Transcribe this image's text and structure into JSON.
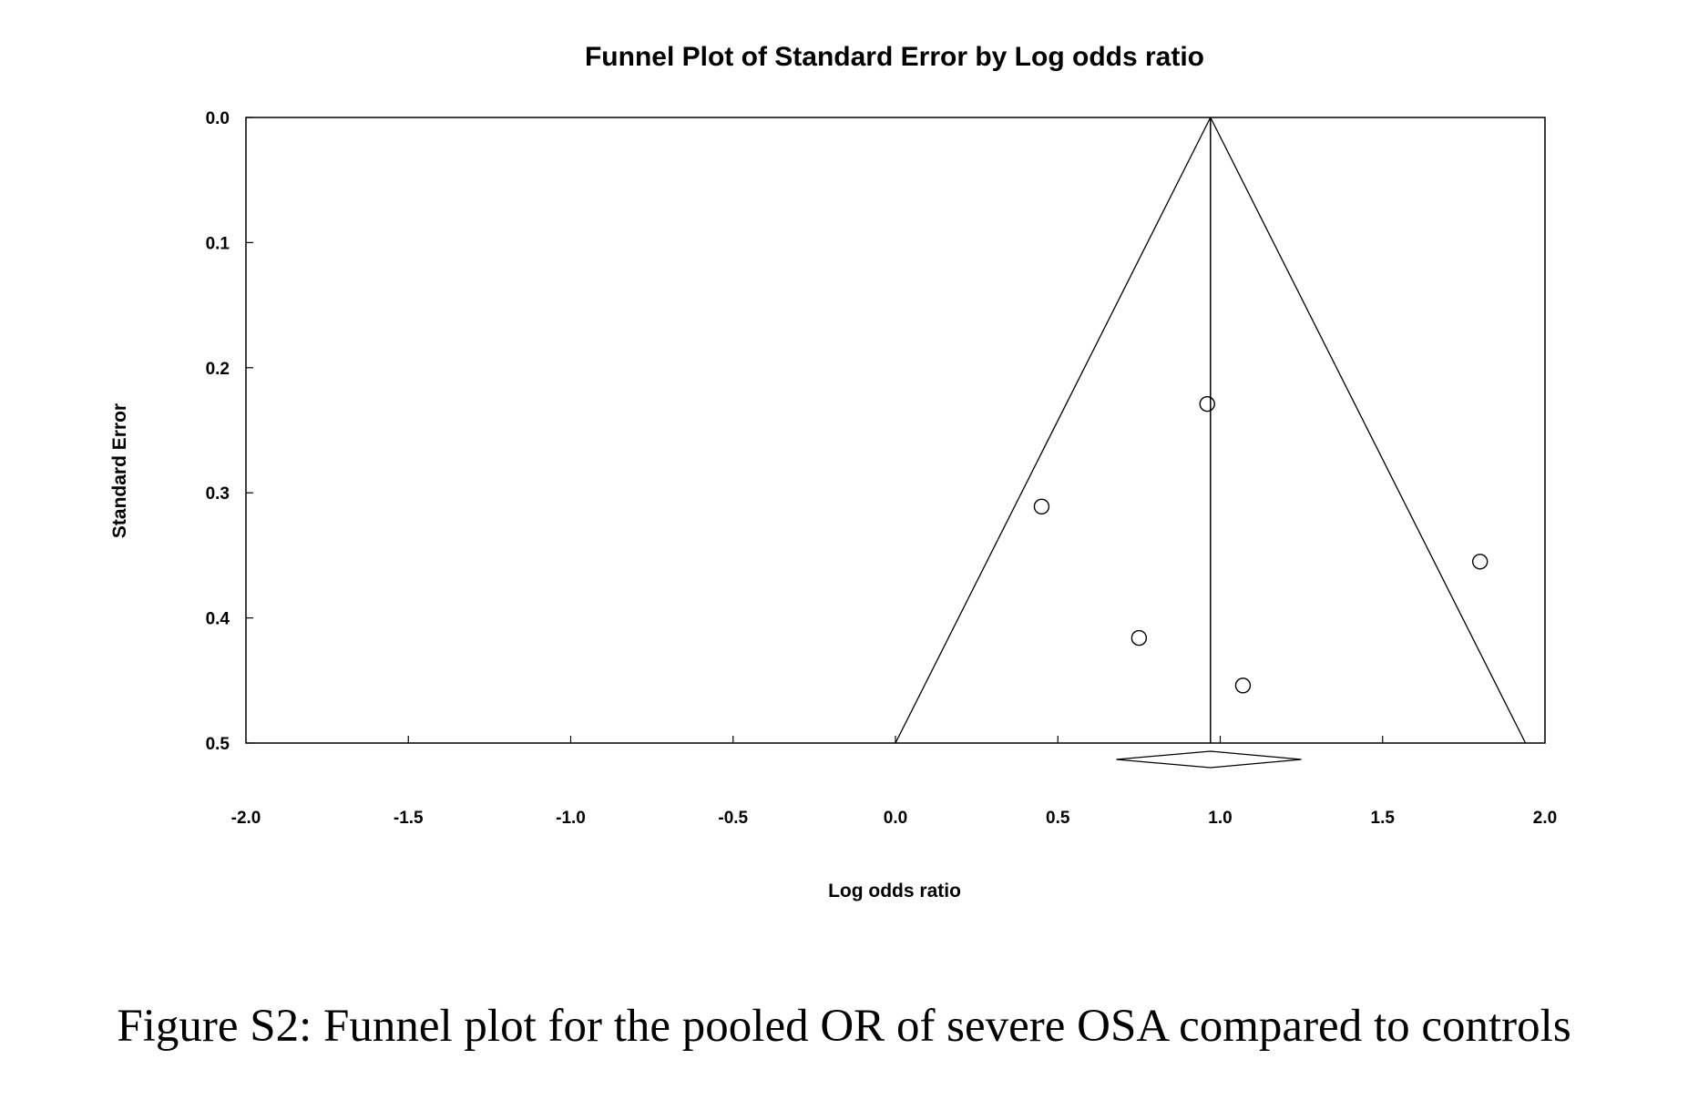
{
  "chart_data": {
    "type": "scatter",
    "title": "Funnel Plot of Standard Error by Log odds ratio",
    "xlabel": "Log odds ratio",
    "ylabel": "Standard Error",
    "xlim": [
      -2.0,
      2.0
    ],
    "ylim": [
      0.0,
      0.5
    ],
    "y_inverted": true,
    "x_ticks": [
      "-2.0",
      "-1.5",
      "-1.0",
      "-0.5",
      "0.0",
      "0.5",
      "1.0",
      "1.5",
      "2.0"
    ],
    "y_ticks": [
      "0.0",
      "0.1",
      "0.2",
      "0.3",
      "0.4",
      "0.5"
    ],
    "grid": false,
    "series": [
      {
        "points": [
          {
            "x": 0.96,
            "y": 0.229
          },
          {
            "x": 0.45,
            "y": 0.311
          },
          {
            "x": 1.8,
            "y": 0.355
          },
          {
            "x": 0.75,
            "y": 0.416
          },
          {
            "x": 1.07,
            "y": 0.454
          }
        ]
      }
    ],
    "pooled_effect": 0.97,
    "pooled_ci": [
      0.68,
      1.25
    ],
    "funnel_lines": {
      "apex": {
        "x": 0.97,
        "y": 0.0
      },
      "left_base": {
        "x": 0.0,
        "y": 0.5
      },
      "right_base": {
        "x": 1.94,
        "y": 0.5
      }
    }
  },
  "caption": "Figure S2: Funnel plot for the pooled OR of severe OSA compared to controls"
}
